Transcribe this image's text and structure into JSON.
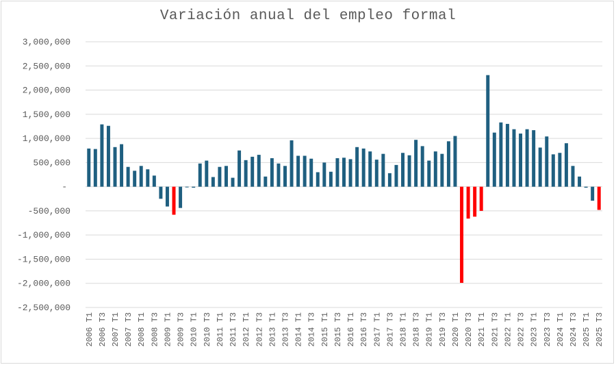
{
  "chart_data": {
    "type": "bar",
    "title": "Variación anual del empleo formal",
    "xlabel": "",
    "ylabel": "",
    "ylim": [
      -2500000,
      3000000
    ],
    "yticks": [
      3000000,
      2500000,
      2000000,
      1500000,
      1000000,
      500000,
      0,
      -500000,
      -1000000,
      -1500000,
      -2000000,
      -2500000
    ],
    "ytick_labels": [
      "3,000,000",
      "2,500,000",
      "2,000,000",
      "1,500,000",
      "1,000,000",
      "500,000",
      "-",
      "-500,000",
      "-1,000,000",
      "-1,500,000",
      "-2,000,000",
      "-2,500,000"
    ],
    "grid": true,
    "legend": null,
    "x_tick_labels_shown_every": 2,
    "colors": {
      "default": "#1F5F80",
      "highlight": "#FF0000",
      "grid": "#d9d9d9",
      "text": "#595959"
    },
    "categories": [
      "2006 T1",
      "2006 T2",
      "2006 T3",
      "2006 T4",
      "2007 T1",
      "2007 T2",
      "2007 T3",
      "2007 T4",
      "2008 T1",
      "2008 T2",
      "2008 T3",
      "2008 T4",
      "2009 T1",
      "2009 T2",
      "2009 T3",
      "2009 T4",
      "2010 T1",
      "2010 T2",
      "2010 T3",
      "2010 T4",
      "2011 T1",
      "2011 T2",
      "2011 T3",
      "2011 T4",
      "2012 T1",
      "2012 T2",
      "2012 T3",
      "2012 T4",
      "2013 T1",
      "2013 T2",
      "2013 T3",
      "2013 T4",
      "2014 T1",
      "2014 T2",
      "2014 T3",
      "2014 T4",
      "2015 T1",
      "2015 T2",
      "2015 T3",
      "2015 T4",
      "2016 T1",
      "2016 T2",
      "2016 T3",
      "2016 T4",
      "2017 T1",
      "2017 T2",
      "2017 T3",
      "2017 T4",
      "2018 T1",
      "2018 T2",
      "2018 T3",
      "2018 T4",
      "2019 T1",
      "2019 T2",
      "2019 T3",
      "2019 T4",
      "2020 T1",
      "2020 T2",
      "2020 T3",
      "2020 T4",
      "2021 T1",
      "2021 T2",
      "2021 T3",
      "2021 T4",
      "2022 T1",
      "2022 T2",
      "2022 T3",
      "2022 T4",
      "2023 T1",
      "2023 T2",
      "2023 T3",
      "2023 T4",
      "2024 T1",
      "2024 T2",
      "2024 T3",
      "2024 T4",
      "2025 T1",
      "2025 T2",
      "2025 T3"
    ],
    "values": [
      790000,
      780000,
      1290000,
      1260000,
      820000,
      880000,
      410000,
      330000,
      430000,
      360000,
      230000,
      -250000,
      -410000,
      -580000,
      -440000,
      -10000,
      -20000,
      480000,
      540000,
      200000,
      410000,
      430000,
      185000,
      750000,
      550000,
      620000,
      660000,
      210000,
      590000,
      480000,
      430000,
      960000,
      640000,
      640000,
      580000,
      300000,
      500000,
      310000,
      590000,
      600000,
      570000,
      820000,
      790000,
      730000,
      560000,
      680000,
      280000,
      450000,
      700000,
      650000,
      970000,
      840000,
      540000,
      730000,
      680000,
      940000,
      1050000,
      -1990000,
      -660000,
      -620000,
      -500000,
      2310000,
      1120000,
      1330000,
      1300000,
      1190000,
      1100000,
      1190000,
      1170000,
      810000,
      1040000,
      670000,
      700000,
      900000,
      430000,
      210000,
      -20000,
      -290000,
      -480000
    ],
    "highlighted_categories": [
      "2009 T2",
      "2020 T2",
      "2020 T3",
      "2020 T4",
      "2021 T1",
      "2025 T3"
    ]
  }
}
